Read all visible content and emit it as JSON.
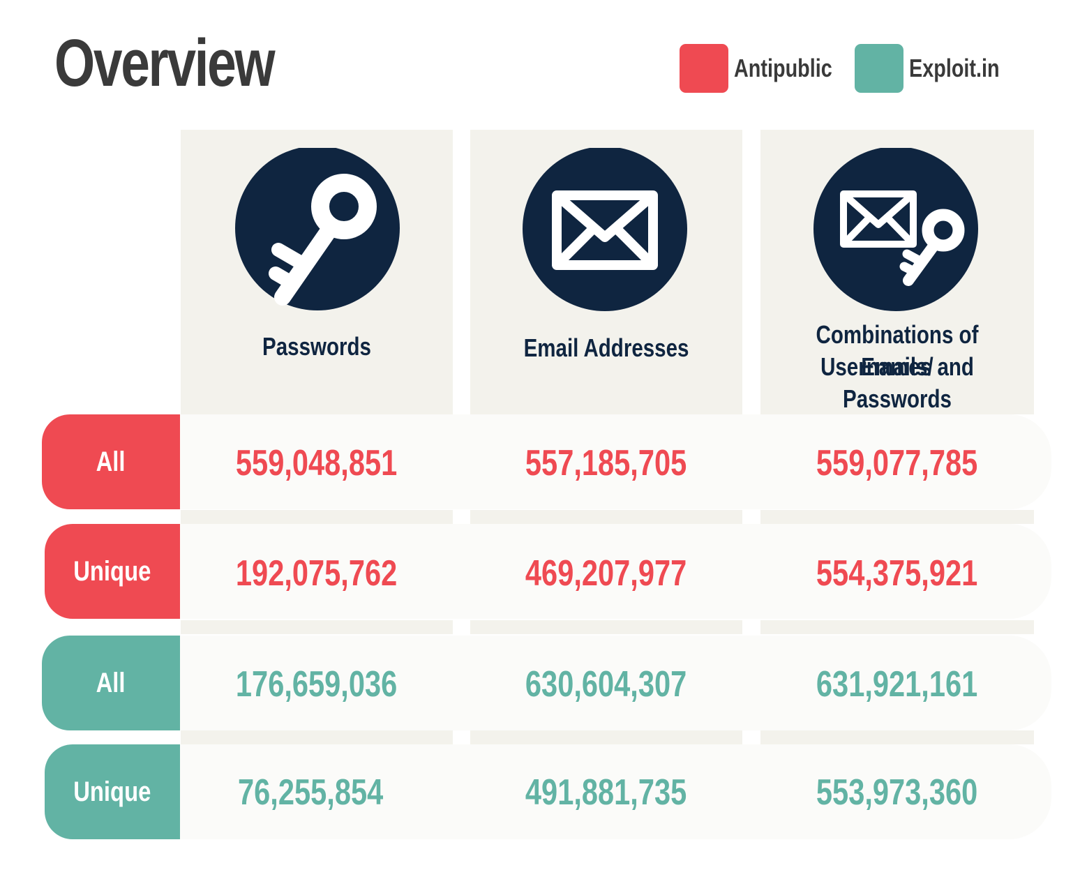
{
  "title": "Overview",
  "legend": [
    {
      "label": "Antipublic",
      "color": "#ef4a52"
    },
    {
      "label": "Exploit.in",
      "color": "#62b3a4"
    }
  ],
  "columns": [
    {
      "title": "Passwords",
      "icon": "key-icon"
    },
    {
      "title": "Email Addresses",
      "icon": "envelope-icon"
    },
    {
      "title_line1": "Combinations of Emails/",
      "title_line2": "Usernames and Passwords",
      "icon": "envelope-key-icon"
    }
  ],
  "rows": [
    {
      "label": "All",
      "source": "Antipublic",
      "color": "#ef4a52",
      "values": [
        "559,048,851",
        "557,185,705",
        "559,077,785"
      ]
    },
    {
      "label": "Unique",
      "source": "Antipublic",
      "color": "#ef4a52",
      "values": [
        "192,075,762",
        "469,207,977",
        "554,375,921"
      ]
    },
    {
      "label": "All",
      "source": "Exploit.in",
      "color": "#62b3a4",
      "values": [
        "176,659,036",
        "630,604,307",
        "631,921,161"
      ]
    },
    {
      "label": "Unique",
      "source": "Exploit.in",
      "color": "#62b3a4",
      "values": [
        "76,255,854",
        "491,881,735",
        "553,973,360"
      ]
    }
  ],
  "chart_data": {
    "type": "table",
    "title": "Overview",
    "columns": [
      "Passwords",
      "Email Addresses",
      "Combinations of Emails/ Usernames and Passwords"
    ],
    "series": [
      {
        "name": "Antipublic All",
        "values": [
          559048851,
          557185705,
          559077785
        ]
      },
      {
        "name": "Antipublic Unique",
        "values": [
          192075762,
          469207977,
          554375921
        ]
      },
      {
        "name": "Exploit.in All",
        "values": [
          176659036,
          630604307,
          631921161
        ]
      },
      {
        "name": "Exploit.in Unique",
        "values": [
          76255854,
          491881735,
          553973360
        ]
      }
    ]
  }
}
